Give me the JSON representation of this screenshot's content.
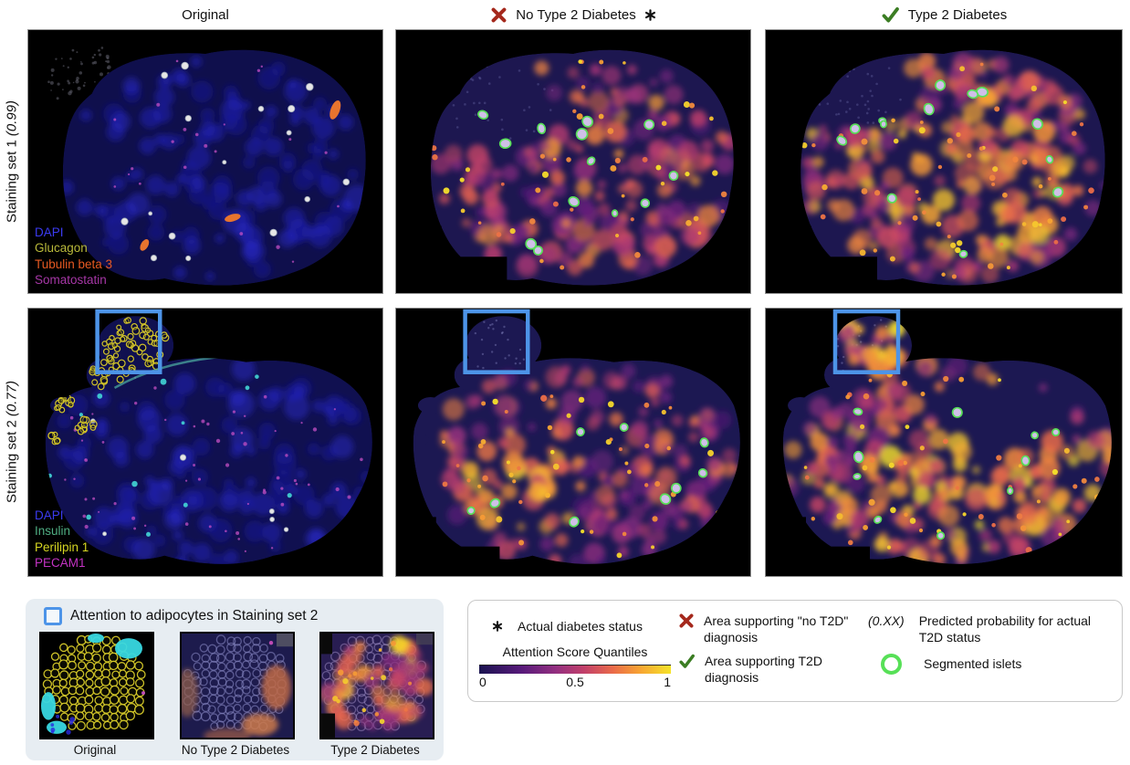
{
  "columns": {
    "original": "Original",
    "no_t2d": "No Type 2 Diabetes",
    "t2d": "Type 2 Diabetes"
  },
  "rows": [
    {
      "label": "Staining set 1",
      "probability": "(0.99)",
      "channels": [
        {
          "name": "DAPI",
          "color": "#3b3bf2"
        },
        {
          "name": "Glucagon",
          "color": "#b9b93a"
        },
        {
          "name": "Tubulin beta 3",
          "color": "#e85a22"
        },
        {
          "name": "Somatostatin",
          "color": "#a637a6"
        }
      ]
    },
    {
      "label": "Staining set 2",
      "probability": "(0.77)",
      "channels": [
        {
          "name": "DAPI",
          "color": "#3b3bf2"
        },
        {
          "name": "Insulin",
          "color": "#4fae83"
        },
        {
          "name": "Perilipin 1",
          "color": "#d6d622"
        },
        {
          "name": "PECAM1",
          "color": "#c433c4"
        }
      ]
    }
  ],
  "inset": {
    "title": "Attention to adipocytes in Staining set 2",
    "captions": [
      "Original",
      "No Type 2 Diabetes",
      "Type 2 Diabetes"
    ]
  },
  "legend": {
    "actual_status": "Actual diabetes status",
    "colorbar_title": "Attention Score Quantiles",
    "colorbar_ticks": [
      "0",
      "0.5",
      "1"
    ],
    "no_t2d_area": "Area supporting \"no T2D\" diagnosis",
    "t2d_area": "Area supporting T2D diagnosis",
    "probability_symbol": "(0.XX)",
    "probability_label": "Predicted probability for actual T2D status",
    "islets_label": "Segmented islets"
  },
  "colors": {
    "no_t2d_x": "#a5291d",
    "t2d_check": "#3b7d23",
    "annotation_box": "#4d94e8",
    "islet_ring": "#57e057",
    "star": "#111111"
  }
}
